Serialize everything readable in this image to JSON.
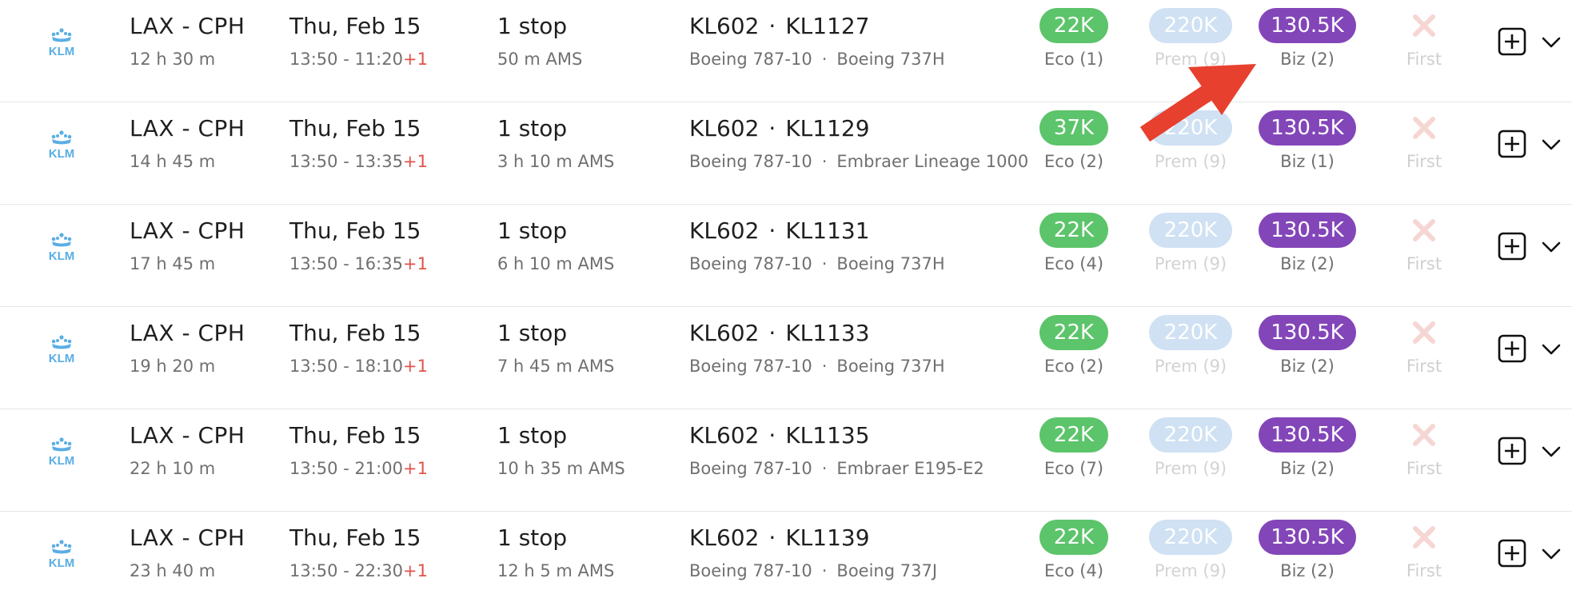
{
  "airline": {
    "logo_text": "KLM",
    "icon": "klm-crown-logo",
    "color": "#5aaee4"
  },
  "cabins": {
    "eco": {
      "color": "#5cc46a"
    },
    "prem": {
      "color": "#cfe1f3"
    },
    "biz": {
      "color": "#8346b9"
    },
    "first": {
      "label": "First",
      "icon": "x-icon",
      "color": "#f6d6d3"
    }
  },
  "annotation": {
    "icon": "red-arrow",
    "color": "#e8402e"
  },
  "results": [
    {
      "route": "LAX - CPH",
      "duration": "12 h 30 m",
      "date": "Thu, Feb 15",
      "times": "13:50 - 11:20",
      "day_offset": "+1",
      "stops": "1 stop",
      "layover": "50 m  AMS",
      "flight1": "KL602",
      "flight2": "KL1127",
      "aircraft1": "Boeing 787-10",
      "aircraft2": "Boeing 737H",
      "eco_price": "22K",
      "eco_label": "Eco (1)",
      "prem_price": "220K",
      "prem_label": "Prem (9)",
      "biz_price": "130.5K",
      "biz_label": "Biz (2)"
    },
    {
      "route": "LAX - CPH",
      "duration": "14 h 45 m",
      "date": "Thu, Feb 15",
      "times": "13:50 - 13:35",
      "day_offset": "+1",
      "stops": "1 stop",
      "layover": "3 h 10 m  AMS",
      "flight1": "KL602",
      "flight2": "KL1129",
      "aircraft1": "Boeing 787-10",
      "aircraft2": "Embraer Lineage 1000",
      "eco_price": "37K",
      "eco_label": "Eco (2)",
      "prem_price": "220K",
      "prem_label": "Prem (9)",
      "biz_price": "130.5K",
      "biz_label": "Biz (1)"
    },
    {
      "route": "LAX - CPH",
      "duration": "17 h 45 m",
      "date": "Thu, Feb 15",
      "times": "13:50 - 16:35",
      "day_offset": "+1",
      "stops": "1 stop",
      "layover": "6 h 10 m  AMS",
      "flight1": "KL602",
      "flight2": "KL1131",
      "aircraft1": "Boeing 787-10",
      "aircraft2": "Boeing 737H",
      "eco_price": "22K",
      "eco_label": "Eco (4)",
      "prem_price": "220K",
      "prem_label": "Prem (9)",
      "biz_price": "130.5K",
      "biz_label": "Biz (2)"
    },
    {
      "route": "LAX - CPH",
      "duration": "19 h 20 m",
      "date": "Thu, Feb 15",
      "times": "13:50 - 18:10",
      "day_offset": "+1",
      "stops": "1 stop",
      "layover": "7 h 45 m  AMS",
      "flight1": "KL602",
      "flight2": "KL1133",
      "aircraft1": "Boeing 787-10",
      "aircraft2": "Boeing 737H",
      "eco_price": "22K",
      "eco_label": "Eco (2)",
      "prem_price": "220K",
      "prem_label": "Prem (9)",
      "biz_price": "130.5K",
      "biz_label": "Biz (2)"
    },
    {
      "route": "LAX - CPH",
      "duration": "22 h 10 m",
      "date": "Thu, Feb 15",
      "times": "13:50 - 21:00",
      "day_offset": "+1",
      "stops": "1 stop",
      "layover": "10 h 35 m  AMS",
      "flight1": "KL602",
      "flight2": "KL1135",
      "aircraft1": "Boeing 787-10",
      "aircraft2": "Embraer E195-E2",
      "eco_price": "22K",
      "eco_label": "Eco (7)",
      "prem_price": "220K",
      "prem_label": "Prem (9)",
      "biz_price": "130.5K",
      "biz_label": "Biz (2)"
    },
    {
      "route": "LAX - CPH",
      "duration": "23 h 40 m",
      "date": "Thu, Feb 15",
      "times": "13:50 - 22:30",
      "day_offset": "+1",
      "stops": "1 stop",
      "layover": "12 h 5 m  AMS",
      "flight1": "KL602",
      "flight2": "KL1139",
      "aircraft1": "Boeing 787-10",
      "aircraft2": "Boeing 737J",
      "eco_price": "22K",
      "eco_label": "Eco (4)",
      "prem_price": "220K",
      "prem_label": "Prem (9)",
      "biz_price": "130.5K",
      "biz_label": "Biz (2)"
    }
  ]
}
